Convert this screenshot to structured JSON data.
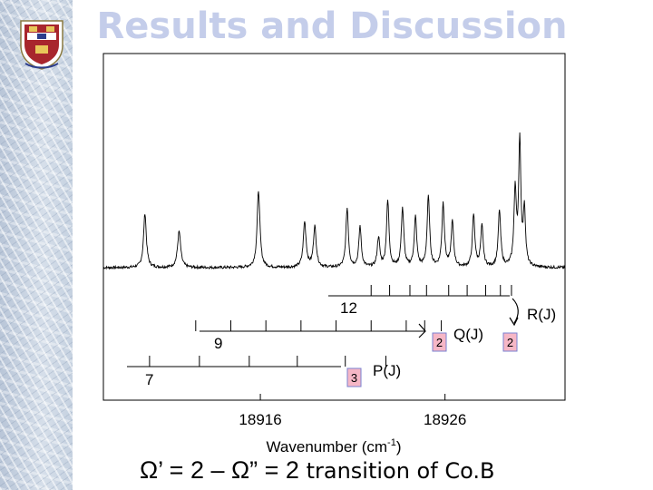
{
  "slide": {
    "title": "Results and Discussion",
    "formula_main": "Ω’ = 2 – Ω” = 2",
    "formula_tail": " transition of Co.B"
  },
  "colors": {
    "title": "#c4cdea",
    "box_fill": "#f6b7c6",
    "box_border": "#7a80d0",
    "trace": "#000000"
  },
  "chart_data": {
    "type": "line",
    "xlabel": "Wavenumber (cm",
    "xlabel_exp": "-1",
    "xlabel_close": ")",
    "xlim": [
      18907.5,
      18932.5
    ],
    "ylim": [
      0,
      1
    ],
    "x_ticks": [
      {
        "value": 18916,
        "label": "18916"
      },
      {
        "value": 18926,
        "label": "18926"
      }
    ],
    "baseline": 0.14,
    "noise": 0.006,
    "peaks": [
      {
        "x": 18909.75,
        "height": 0.24,
        "width": 0.09
      },
      {
        "x": 18911.6,
        "height": 0.16,
        "width": 0.1
      },
      {
        "x": 18915.9,
        "height": 0.34,
        "width": 0.09
      },
      {
        "x": 18918.4,
        "height": 0.2,
        "width": 0.09
      },
      {
        "x": 18918.95,
        "height": 0.18,
        "width": 0.09
      },
      {
        "x": 18920.7,
        "height": 0.26,
        "width": 0.08
      },
      {
        "x": 18921.4,
        "height": 0.18,
        "width": 0.08
      },
      {
        "x": 18922.4,
        "height": 0.13,
        "width": 0.08
      },
      {
        "x": 18922.9,
        "height": 0.29,
        "width": 0.08
      },
      {
        "x": 18923.7,
        "height": 0.26,
        "width": 0.08
      },
      {
        "x": 18924.4,
        "height": 0.22,
        "width": 0.08
      },
      {
        "x": 18925.1,
        "height": 0.31,
        "width": 0.08
      },
      {
        "x": 18925.9,
        "height": 0.28,
        "width": 0.08
      },
      {
        "x": 18926.4,
        "height": 0.2,
        "width": 0.08
      },
      {
        "x": 18927.55,
        "height": 0.23,
        "width": 0.08
      },
      {
        "x": 18928.0,
        "height": 0.18,
        "width": 0.08
      },
      {
        "x": 18928.95,
        "height": 0.25,
        "width": 0.08
      },
      {
        "x": 18929.8,
        "height": 0.33,
        "width": 0.08
      },
      {
        "x": 18930.05,
        "height": 0.55,
        "width": 0.07
      },
      {
        "x": 18930.3,
        "height": 0.25,
        "width": 0.07
      }
    ],
    "branches": [
      {
        "name": "R(J)",
        "start_label": "12",
        "box_label": "2",
        "ticks": [
          18922.0,
          18923.0,
          18924.1,
          18925.0,
          18926.2,
          18927.2,
          18928.2,
          18929.0,
          18929.6
        ]
      },
      {
        "name": "Q(J)",
        "start_label": "9",
        "box_label": "2",
        "ticks": [
          18912.5,
          18914.4,
          18916.3,
          18918.2,
          18920.1,
          18922.0,
          18923.9,
          18924.9,
          18925.8
        ]
      },
      {
        "name": "P(J)",
        "start_label": "7",
        "box_label": "3",
        "ticks": [
          18910.0,
          18912.7,
          18915.4,
          18918.0,
          18920.6,
          18922.8
        ]
      }
    ]
  }
}
